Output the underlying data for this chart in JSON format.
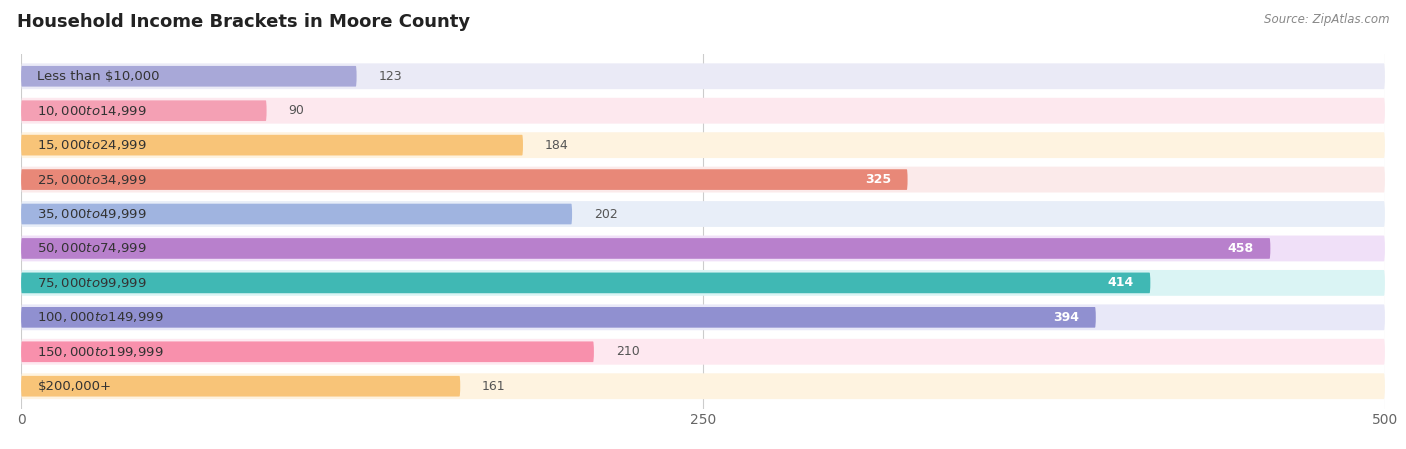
{
  "title": "Household Income Brackets in Moore County",
  "source": "Source: ZipAtlas.com",
  "categories": [
    "Less than $10,000",
    "$10,000 to $14,999",
    "$15,000 to $24,999",
    "$25,000 to $34,999",
    "$35,000 to $49,999",
    "$50,000 to $74,999",
    "$75,000 to $99,999",
    "$100,000 to $149,999",
    "$150,000 to $199,999",
    "$200,000+"
  ],
  "values": [
    123,
    90,
    184,
    325,
    202,
    458,
    414,
    394,
    210,
    161
  ],
  "bar_colors": [
    "#a8a8d8",
    "#f4a0b4",
    "#f8c478",
    "#e88878",
    "#a0b4e0",
    "#b880cc",
    "#40b8b4",
    "#9090d0",
    "#f890ac",
    "#f8c478"
  ],
  "bar_bg_colors": [
    "#eaeaf6",
    "#fde8ee",
    "#fef3e0",
    "#fbeaea",
    "#e8eef8",
    "#f0e0f8",
    "#daf4f4",
    "#e8e8f8",
    "#fee8f0",
    "#fef3e0"
  ],
  "xlim": [
    0,
    500
  ],
  "xticks": [
    0,
    250,
    500
  ],
  "background_color": "#ffffff",
  "title_fontsize": 13,
  "label_fontsize": 9.5,
  "value_fontsize": 9,
  "value_threshold": 250
}
